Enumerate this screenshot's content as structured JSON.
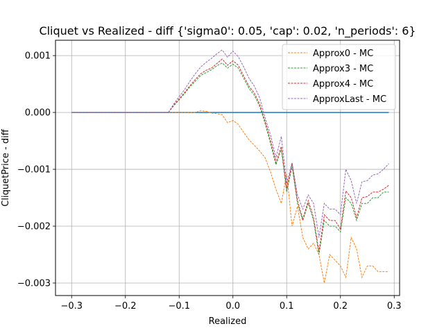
{
  "chart_data": {
    "type": "line",
    "title": "Cliquet vs Realized - diff {'sigma0': 0.05, 'cap': 0.02, 'n_periods': 6}",
    "xlabel": "Realized",
    "ylabel": "CliquetPrice - diff",
    "xlim": [
      -0.33,
      0.31
    ],
    "ylim": [
      -0.00322,
      0.00127
    ],
    "xticks": [
      -0.3,
      -0.2,
      -0.1,
      0.0,
      0.1,
      0.2,
      0.3
    ],
    "xtick_labels": [
      "−0.3",
      "−0.2",
      "−0.1",
      "0.0",
      "0.1",
      "0.2",
      "0.3"
    ],
    "yticks": [
      0.001,
      0.0,
      -0.001,
      -0.002,
      -0.003
    ],
    "ytick_labels": [
      "0.001",
      "0.000",
      "−0.001",
      "−0.002",
      "−0.003"
    ],
    "grid": true,
    "legend_position": "top-right",
    "baseline": {
      "name": "",
      "color": "#1f77b4",
      "x": [
        -0.3,
        0.29
      ],
      "values": [
        0.0,
        0.0
      ]
    },
    "x": [
      -0.3,
      -0.29,
      -0.28,
      -0.27,
      -0.26,
      -0.25,
      -0.24,
      -0.23,
      -0.22,
      -0.21,
      -0.2,
      -0.19,
      -0.18,
      -0.17,
      -0.16,
      -0.15,
      -0.14,
      -0.13,
      -0.12,
      -0.11,
      -0.1,
      -0.09,
      -0.08,
      -0.07,
      -0.06,
      -0.05,
      -0.04,
      -0.03,
      -0.02,
      -0.01,
      0.0,
      0.01,
      0.02,
      0.03,
      0.04,
      0.05,
      0.06,
      0.07,
      0.08,
      0.09,
      0.1,
      0.11,
      0.12,
      0.13,
      0.14,
      0.15,
      0.16,
      0.17,
      0.18,
      0.19,
      0.2,
      0.21,
      0.22,
      0.23,
      0.24,
      0.25,
      0.26,
      0.27,
      0.28,
      0.29
    ],
    "series": [
      {
        "name": "Approx0 - MC",
        "color": "#ff7f0e",
        "values": [
          0.0,
          0.0,
          0.0,
          0.0,
          0.0,
          0.0,
          0.0,
          0.0,
          0.0,
          0.0,
          0.0,
          0.0,
          0.0,
          0.0,
          0.0,
          0.0,
          0.0,
          0.0,
          0.0,
          0.0,
          0.0,
          0.0,
          0.0,
          0.0,
          3e-05,
          2e-05,
          -1e-05,
          -2e-05,
          -4e-05,
          -0.00018,
          -0.00014,
          -0.00021,
          -0.00035,
          -0.00048,
          -0.00058,
          -0.00068,
          -0.0008,
          -0.00105,
          -0.00135,
          -0.0016,
          -0.00108,
          -0.002,
          -0.00165,
          -0.0022,
          -0.0024,
          -0.0023,
          -0.0025,
          -0.003,
          -0.0025,
          -0.0026,
          -0.0027,
          -0.0029,
          -0.0022,
          -0.0024,
          -0.0029,
          -0.0027,
          -0.0027,
          -0.0028,
          -0.0028,
          -0.0028
        ]
      },
      {
        "name": "Approx3 - MC",
        "color": "#2ca02c",
        "values": [
          0.0,
          0.0,
          0.0,
          0.0,
          0.0,
          0.0,
          0.0,
          0.0,
          0.0,
          0.0,
          0.0,
          0.0,
          0.0,
          0.0,
          0.0,
          0.0,
          0.0,
          0.0,
          0.0,
          0.00012,
          0.00022,
          0.00033,
          0.00045,
          0.00055,
          0.00065,
          0.0007,
          0.00075,
          0.00082,
          0.00087,
          0.00078,
          0.00085,
          0.00078,
          0.0006,
          0.00042,
          0.0003,
          0.0001,
          -0.0002,
          -0.00055,
          -0.00092,
          -0.00065,
          -0.0014,
          -0.00095,
          -0.0016,
          -0.0019,
          -0.0016,
          -0.0019,
          -0.0025,
          -0.0019,
          -0.002,
          -0.002,
          -0.0021,
          -0.0015,
          -0.0016,
          -0.0019,
          -0.0016,
          -0.0016,
          -0.0015,
          -0.0015,
          -0.0014,
          -0.0014
        ]
      },
      {
        "name": "Approx4 - MC",
        "color": "#d62728",
        "values": [
          0.0,
          0.0,
          0.0,
          0.0,
          0.0,
          0.0,
          0.0,
          0.0,
          0.0,
          0.0,
          0.0,
          0.0,
          0.0,
          0.0,
          0.0,
          0.0,
          0.0,
          0.0,
          0.0,
          0.00013,
          0.00024,
          0.00035,
          0.00047,
          0.00058,
          0.00068,
          0.00074,
          0.00078,
          0.00086,
          0.00094,
          0.00083,
          0.00091,
          0.00083,
          0.00064,
          0.00046,
          0.00034,
          0.00014,
          -0.00016,
          -0.0005,
          -0.00088,
          -0.0006,
          -0.00135,
          -0.0009,
          -0.00155,
          -0.00188,
          -0.00155,
          -0.00185,
          -0.00245,
          -0.0018,
          -0.0019,
          -0.0019,
          -0.00205,
          -0.00138,
          -0.0015,
          -0.00185,
          -0.0015,
          -0.00148,
          -0.0014,
          -0.0014,
          -0.00135,
          -0.00128
        ]
      },
      {
        "name": "ApproxLast - MC",
        "color": "#9467bd",
        "values": [
          0.0,
          0.0,
          0.0,
          0.0,
          0.0,
          0.0,
          0.0,
          0.0,
          0.0,
          0.0,
          0.0,
          0.0,
          0.0,
          0.0,
          0.0,
          0.0,
          0.0,
          0.0,
          0.0,
          0.00015,
          0.00028,
          0.0004,
          0.00055,
          0.00068,
          0.0008,
          0.00088,
          0.00095,
          0.00103,
          0.0011,
          0.00097,
          0.00108,
          0.00098,
          0.0008,
          0.0006,
          0.00046,
          0.00025,
          -0.0001,
          -0.0004,
          -0.0008,
          -0.00042,
          -0.00125,
          -0.00088,
          -0.00145,
          -0.0017,
          -0.00145,
          -0.0016,
          -0.0022,
          -0.0016,
          -0.0017,
          -0.0017,
          -0.0018,
          -0.001,
          -0.0012,
          -0.0016,
          -0.00122,
          -0.0012,
          -0.0011,
          -0.00108,
          -0.001,
          -0.0009
        ]
      }
    ]
  }
}
